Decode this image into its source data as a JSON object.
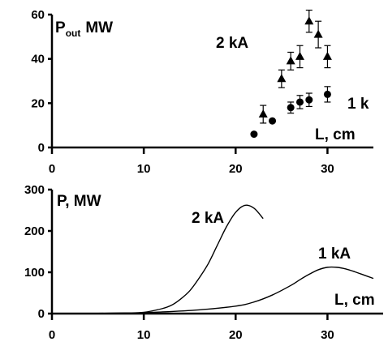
{
  "chart_data": [
    {
      "type": "scatter",
      "title_main": "P",
      "title_sub": "out",
      "title_unit": "MW",
      "xlabel": "L, cm",
      "xlim": [
        0,
        35
      ],
      "ylim": [
        0,
        60
      ],
      "xticks": [
        0,
        10,
        20,
        30
      ],
      "yticks": [
        0,
        20,
        40,
        60
      ],
      "series": [
        {
          "name": "2 kA",
          "marker": "triangle",
          "x": [
            23,
            25,
            26,
            27,
            28,
            29,
            30
          ],
          "y": [
            15,
            31,
            39,
            41,
            57,
            51,
            41
          ],
          "err": [
            4,
            4,
            4,
            5,
            5,
            6,
            5
          ]
        },
        {
          "name": "1 k",
          "marker": "circle",
          "x": [
            22,
            24,
            26,
            27,
            28,
            30
          ],
          "y": [
            6,
            12,
            18,
            20.5,
            21.5,
            24
          ],
          "err": [
            0,
            0,
            2.5,
            3,
            3,
            3.5
          ]
        }
      ]
    },
    {
      "type": "line",
      "title": "P, MW",
      "xlabel": "L, cm",
      "xlim": [
        0,
        35
      ],
      "ylim": [
        0,
        300
      ],
      "xticks": [
        0,
        10,
        20,
        30
      ],
      "yticks": [
        0,
        100,
        200,
        300
      ],
      "series": [
        {
          "name": "2 kA",
          "x": [
            0,
            5,
            8,
            10,
            12,
            13,
            14,
            15,
            16,
            17,
            18,
            19,
            20,
            21,
            22,
            23
          ],
          "y": [
            0,
            0.5,
            1.5,
            3,
            12,
            20,
            35,
            55,
            85,
            120,
            165,
            210,
            245,
            262,
            255,
            230
          ]
        },
        {
          "name": "1 kA",
          "x": [
            0,
            8,
            12,
            16,
            20,
            22,
            24,
            26,
            27,
            28,
            29,
            30,
            31,
            32,
            33,
            34,
            35
          ],
          "y": [
            0,
            1,
            4,
            9,
            18,
            28,
            45,
            68,
            82,
            95,
            106,
            112,
            112,
            108,
            101,
            93,
            85
          ]
        }
      ]
    }
  ]
}
